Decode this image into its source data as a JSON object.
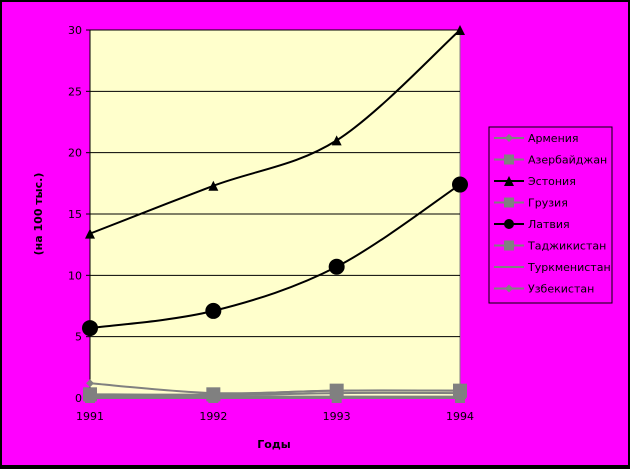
{
  "chart_data": {
    "type": "line",
    "title": "",
    "xlabel": "Годы",
    "ylabel": [
      "",
      "(на 100 тыс.)"
    ],
    "x": [
      "1991",
      "1992",
      "1993",
      "1994"
    ],
    "ylim": [
      0,
      30
    ],
    "yticks": [
      "0",
      "5",
      "10",
      "15",
      "20",
      "25",
      "30"
    ],
    "grid": "horizontal",
    "legend_position": "right",
    "plot_background": "#ffffcc",
    "page_background": "#ff00ff",
    "series": [
      {
        "name": "Армения",
        "values": [
          1.2,
          0.4,
          0.6,
          0.6
        ],
        "color": "#808080",
        "marker": "diamond",
        "marker_size": 4
      },
      {
        "name": "Азербайджан",
        "values": [
          0.0,
          0.0,
          0.0,
          0.0
        ],
        "color": "#808080",
        "marker": "square",
        "marker_size": 5
      },
      {
        "name": "Эстония",
        "values": [
          13.4,
          17.3,
          21.0,
          30.0
        ],
        "color": "#000000",
        "marker": "triangle",
        "marker_size": 5
      },
      {
        "name": "Грузия",
        "values": [
          0.3,
          0.3,
          0.6,
          0.6
        ],
        "color": "#808080",
        "marker": "square",
        "marker_size": 7
      },
      {
        "name": "Латвия",
        "values": [
          5.7,
          7.1,
          10.7,
          17.4
        ],
        "color": "#000000",
        "marker": "circle",
        "marker_size": 8
      },
      {
        "name": "Таджикистан",
        "values": [
          0.2,
          0.2,
          0.4,
          0.4
        ],
        "color": "#808080",
        "marker": "square",
        "marker_size": 6
      },
      {
        "name": "Туркменистан",
        "values": [
          0.1,
          0.1,
          0.1,
          0.1
        ],
        "color": "#808080",
        "marker": "none",
        "marker_size": 0
      },
      {
        "name": "Узбекистан",
        "values": [
          0.1,
          0.1,
          0.1,
          0.1
        ],
        "color": "#808080",
        "marker": "diamond",
        "marker_size": 4
      }
    ]
  }
}
